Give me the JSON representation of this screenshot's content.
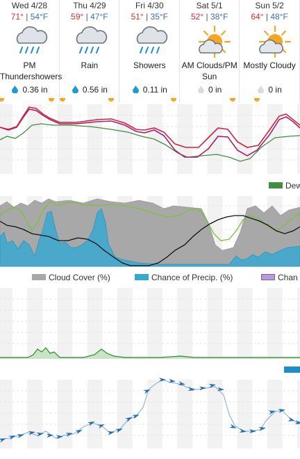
{
  "days": [
    {
      "name": "Wed 4/28",
      "hi": "71°",
      "lo": "54°F",
      "condition": "PM Thundershowers",
      "precip": "0.36 in",
      "icon": "cloud-rain-icon",
      "drop": "blue"
    },
    {
      "name": "Thu 4/29",
      "hi": "59°",
      "lo": "47°F",
      "condition": "Rain",
      "precip": "0.56 in",
      "icon": "cloud-rain-icon",
      "drop": "blue"
    },
    {
      "name": "Fri 4/30",
      "hi": "51°",
      "lo": "35°F",
      "condition": "Showers",
      "precip": "0.11 in",
      "icon": "cloud-rain-icon",
      "drop": "blue"
    },
    {
      "name": "Sat 5/1",
      "hi": "52°",
      "lo": "38°F",
      "condition": "AM Clouds/PM Sun",
      "precip": "0 in",
      "icon": "sun-cloud-icon",
      "drop": "gray"
    },
    {
      "name": "Sun 5/2",
      "hi": "64°",
      "lo": "48°F",
      "condition": "Mostly Cloudy",
      "precip": "0 in",
      "icon": "sun-cloud-icon",
      "drop": "gray"
    }
  ],
  "temp_sep": " | ",
  "legends": {
    "dew": "Dew",
    "cloud_cover": "Cloud Cover (%)",
    "precip_chance": "Chance of Precip. (%)",
    "chance_cut": "Chan"
  },
  "colors": {
    "temperature": "#d0233c",
    "feels_like": "#a6206c",
    "dew_point": "#3f8f3f",
    "humidity": "#7ac13c",
    "cloud_cover": "#a8a8a8",
    "precip_chance": "#3aa9d1",
    "pressure": "#111111",
    "precip_amount": "#2f8a2f",
    "wind": "#1f6cb0",
    "blue_bar": "#1a8fca"
  }
}
